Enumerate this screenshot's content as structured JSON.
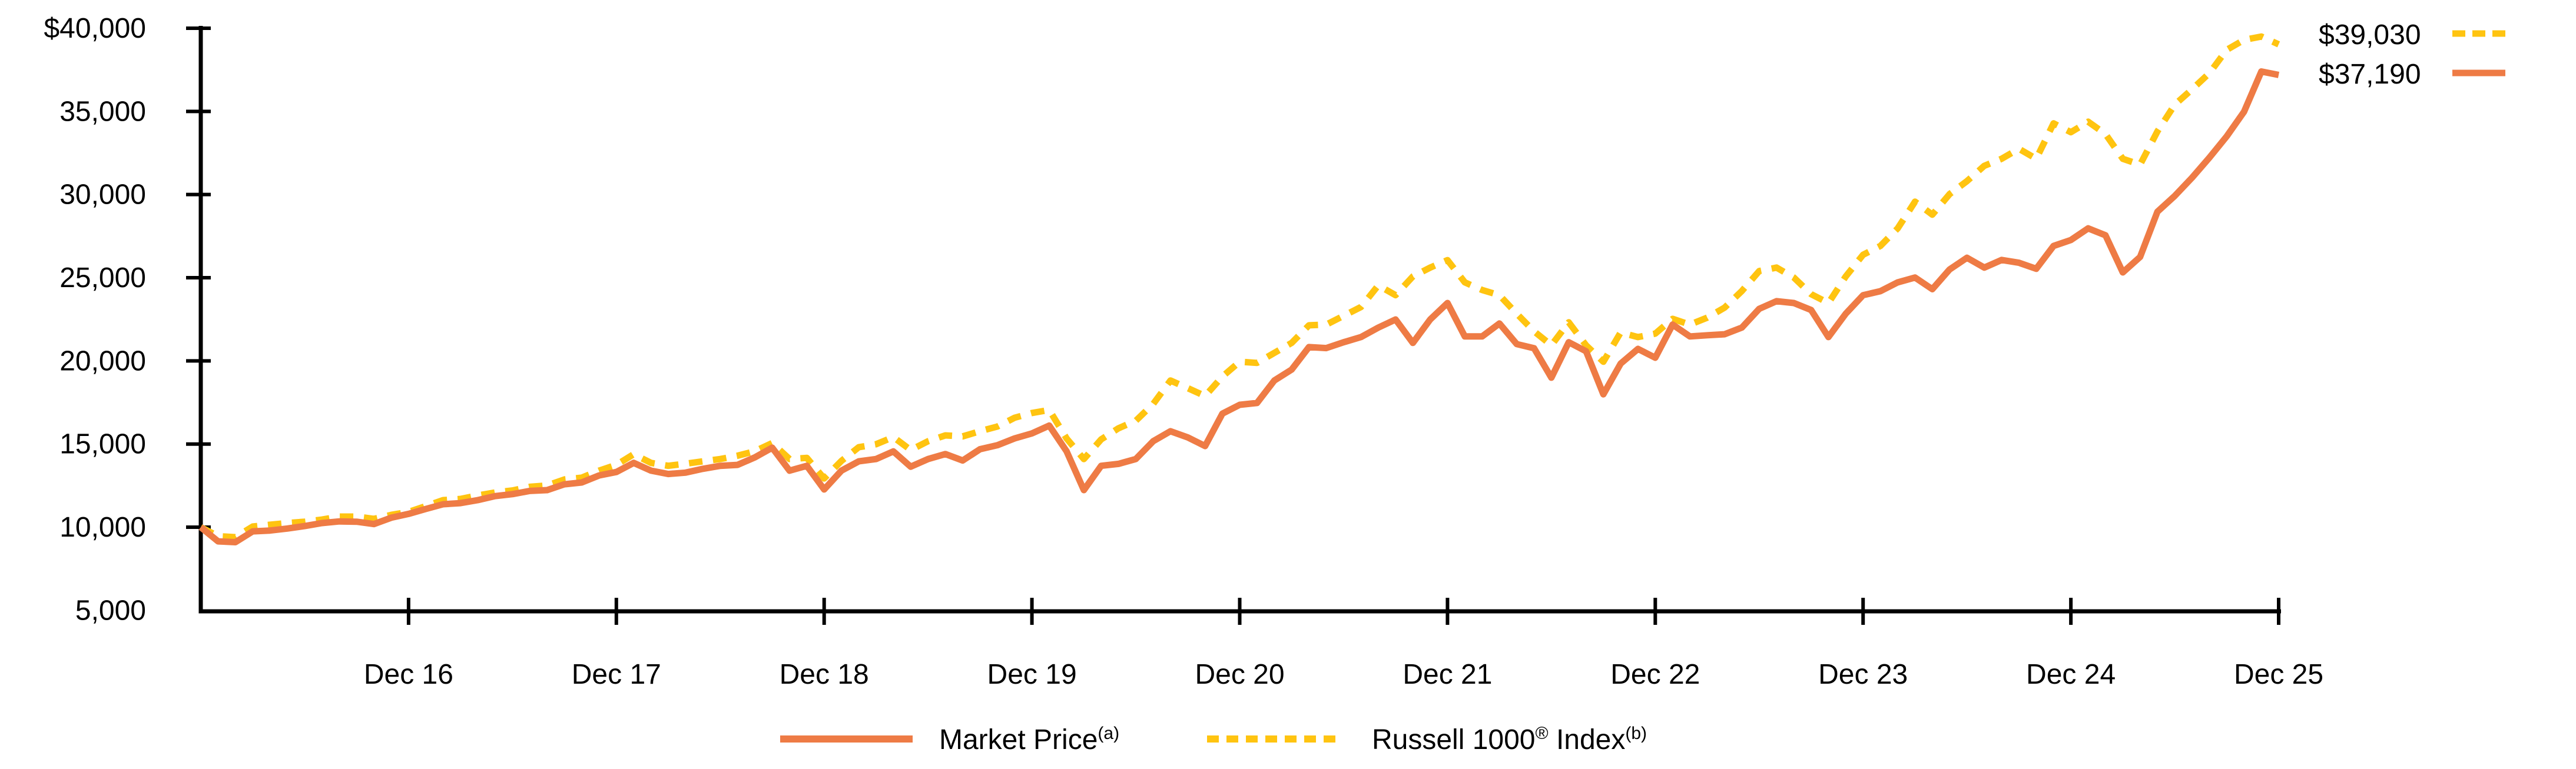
{
  "chart_data": {
    "type": "line",
    "title": "",
    "description": "Growth of $10,000 comparison chart, monthly values from Dec 2015 through Dec 2025",
    "grid": "off",
    "legend_position": "bottom-center",
    "axis_color": "#000000",
    "text_color": "#000000",
    "y_axis": {
      "min": 5000,
      "max": 40000,
      "tick_interval": 5000,
      "ticks": [
        {
          "label": "$40,000",
          "value": 40000
        },
        {
          "label": "35,000",
          "value": 35000
        },
        {
          "label": "30,000",
          "value": 30000
        },
        {
          "label": "25,000",
          "value": 25000
        },
        {
          "label": "20,000",
          "value": 20000
        },
        {
          "label": "15,000",
          "value": 15000
        },
        {
          "label": "10,000",
          "value": 10000
        },
        {
          "label": "5,000",
          "value": 5000
        }
      ]
    },
    "x_axis": {
      "tick_labels": [
        "Dec 16",
        "Dec 17",
        "Dec 18",
        "Dec 19",
        "Dec 20",
        "Dec 21",
        "Dec 22",
        "Dec 23",
        "Dec 24",
        "Dec 25"
      ],
      "start": "Dec 15",
      "months_per_tick": 12
    },
    "series": [
      {
        "name": "Market Price",
        "legend_label": "Market Price",
        "legend_sup": "(a)",
        "color": "#EE7B45",
        "style": "solid",
        "end_label": "$37,190",
        "end_value": 37190,
        "monthly_values": [
          10000,
          9150,
          9100,
          9750,
          9800,
          9920,
          10070,
          10250,
          10350,
          10330,
          10190,
          10570,
          10800,
          11100,
          11380,
          11450,
          11630,
          11870,
          11990,
          12180,
          12230,
          12580,
          12690,
          13110,
          13320,
          13870,
          13400,
          13200,
          13280,
          13510,
          13690,
          13750,
          14200,
          14780,
          13400,
          13690,
          12270,
          13400,
          13960,
          14100,
          14560,
          13640,
          14100,
          14400,
          14010,
          14690,
          14930,
          15340,
          15640,
          16110,
          14570,
          12230,
          13690,
          13810,
          14100,
          15170,
          15770,
          15400,
          14880,
          16830,
          17360,
          17470,
          18820,
          19480,
          20830,
          20770,
          21120,
          21430,
          22000,
          22490,
          21080,
          22490,
          23480,
          21470,
          21470,
          22250,
          21010,
          20760,
          18990,
          21120,
          20580,
          17990,
          19840,
          20720,
          20190,
          22180,
          21470,
          21540,
          21600,
          22000,
          23130,
          23590,
          23480,
          23060,
          21430,
          22840,
          23950,
          24190,
          24720,
          25010,
          24310,
          25500,
          26200,
          25610,
          26070,
          25900,
          25540,
          26910,
          27270,
          27970,
          27550,
          25320,
          26250,
          28970,
          29920,
          31020,
          32220,
          33500,
          34980,
          37400,
          37190
        ]
      },
      {
        "name": "Russell 1000 Index",
        "legend_label": "Russell 1000",
        "legend_sup1": "®",
        "legend_label2": " Index",
        "legend_sup2": "(b)",
        "color": "#FFC410",
        "style": "dashed",
        "end_label": "$39,030",
        "end_value": 39030,
        "monthly_values": [
          10000,
          9460,
          9400,
          10040,
          10150,
          10250,
          10330,
          10460,
          10640,
          10640,
          10500,
          10740,
          10920,
          11270,
          11630,
          11700,
          11910,
          12090,
          12210,
          12430,
          12510,
          12870,
          12980,
          13400,
          13750,
          14390,
          13870,
          13690,
          13820,
          13960,
          14100,
          14300,
          14570,
          15060,
          14100,
          14170,
          12930,
          13990,
          14810,
          14990,
          15420,
          14640,
          15170,
          15520,
          15460,
          15770,
          16050,
          16580,
          16870,
          17050,
          15340,
          14100,
          15280,
          15950,
          16400,
          17410,
          18820,
          18360,
          17890,
          19060,
          19950,
          19880,
          20480,
          21080,
          22140,
          22180,
          22710,
          23240,
          24540,
          23950,
          25080,
          25610,
          26060,
          24720,
          24260,
          23950,
          22840,
          21780,
          20940,
          22320,
          20940,
          19950,
          21710,
          21430,
          21640,
          22530,
          22180,
          22600,
          23200,
          24200,
          25400,
          25610,
          25010,
          24010,
          23480,
          25080,
          26380,
          26910,
          27970,
          29570,
          28790,
          30030,
          30810,
          31730,
          32150,
          32750,
          32150,
          34280,
          33750,
          34380,
          33640,
          32150,
          31800,
          33800,
          35410,
          36330,
          37300,
          38700,
          39300,
          39500,
          39030
        ]
      }
    ]
  }
}
